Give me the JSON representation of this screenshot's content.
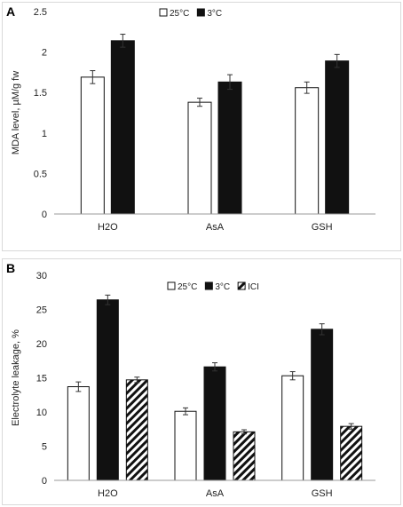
{
  "figure": {
    "panels": [
      {
        "letter": "A"
      },
      {
        "letter": "B"
      }
    ]
  },
  "chart_data": [
    {
      "type": "bar",
      "panel": "A",
      "title": "",
      "xlabel": "",
      "ylabel": "MDA level, µM/g fw",
      "categories": [
        "H2O",
        "AsA",
        "GSH"
      ],
      "ylim": [
        0,
        2.5
      ],
      "yticks": [
        0,
        0.5,
        1,
        1.5,
        2,
        2.5
      ],
      "ytick_labels": [
        "0",
        "0.5",
        "1",
        "1.5",
        "2",
        "2.5"
      ],
      "grid": false,
      "legend_position": "top-center",
      "series": [
        {
          "name": "25°C",
          "fill": "white",
          "values": [
            1.69,
            1.38,
            1.56
          ],
          "errors": [
            0.08,
            0.05,
            0.07
          ]
        },
        {
          "name": "3°C",
          "fill": "black",
          "values": [
            2.14,
            1.63,
            1.89
          ],
          "errors": [
            0.08,
            0.09,
            0.08
          ]
        }
      ]
    },
    {
      "type": "bar",
      "panel": "B",
      "title": "",
      "xlabel": "",
      "ylabel": "Electrolyte leakage, %",
      "categories": [
        "H2O",
        "AsA",
        "GSH"
      ],
      "ylim": [
        0,
        30
      ],
      "yticks": [
        0,
        5,
        10,
        15,
        20,
        25,
        30
      ],
      "ytick_labels": [
        "0",
        "5",
        "10",
        "15",
        "20",
        "25",
        "30"
      ],
      "grid": false,
      "legend_position": "top-center",
      "series": [
        {
          "name": "25°C",
          "fill": "white",
          "values": [
            13.7,
            10.1,
            15.3
          ],
          "errors": [
            0.7,
            0.5,
            0.6
          ]
        },
        {
          "name": "3°C",
          "fill": "black",
          "values": [
            26.4,
            16.6,
            22.1
          ],
          "errors": [
            0.7,
            0.6,
            0.8
          ]
        },
        {
          "name": "ICI",
          "fill": "hatched",
          "values": [
            14.7,
            7.1,
            7.9
          ],
          "errors": [
            0.4,
            0.3,
            0.4
          ]
        }
      ]
    }
  ]
}
